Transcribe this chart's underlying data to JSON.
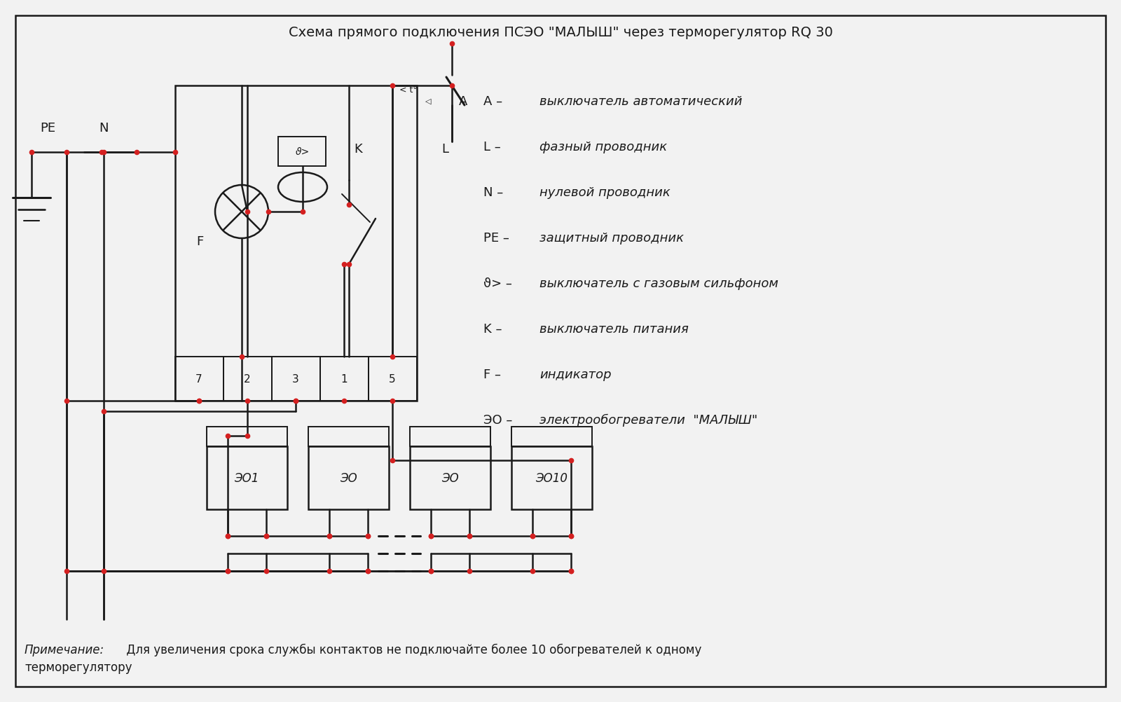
{
  "title": "Схема прямого подключения ПСЭО \"МАЛЫШ\" через терморегулятор RQ 30",
  "bg_color": "#f2f2f2",
  "line_color": "#1a1a1a",
  "red_color": "#d42020",
  "note_italic": "Примечание:",
  "note_body": " Для увеличения срока службы контактов не подключайте более 10 обогревателей к одному",
  "note_line2": "терморегулятору",
  "legend": [
    [
      "A",
      "выключатель автоматический"
    ],
    [
      "L",
      "фазный проводник"
    ],
    [
      "N",
      "нулевой проводник"
    ],
    [
      "PE",
      "защитный проводник"
    ],
    [
      "ϑ>",
      "выключатель с газовым сильфоном"
    ],
    [
      "K",
      "выключатель питания"
    ],
    [
      "F",
      "индикатор"
    ],
    [
      "ЭO",
      "электрообогреватели  \"МАЛЫШ\""
    ]
  ],
  "terminals": [
    "7",
    "2",
    "3",
    "1",
    "5"
  ],
  "heaters": [
    "ЭО1",
    "ЭО",
    "ЭО",
    "ЭО10"
  ]
}
